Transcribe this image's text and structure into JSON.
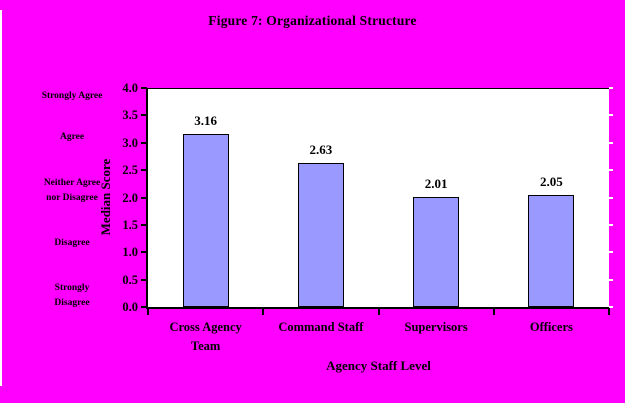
{
  "title": "Figure 7: Organizational Structure",
  "colors": {
    "background": "#FF00FF",
    "plot_background": "#FFFFFF",
    "bar_fill": "#9999FF",
    "bar_border": "#000000",
    "axis": "#000000",
    "text": "#000000"
  },
  "likert_scale_labels": [
    {
      "lines": [
        "Strongly Agree"
      ],
      "value": 4
    },
    {
      "lines": [
        "Agree"
      ],
      "value": 3
    },
    {
      "lines": [
        "Neither Agree",
        "nor Disagree"
      ],
      "value": 2
    },
    {
      "lines": [
        "Disagree"
      ],
      "value": 1
    },
    {
      "lines": [
        "Strongly",
        "Disagree"
      ],
      "value": 0
    }
  ],
  "chart_data": {
    "type": "bar",
    "title": "Figure 7: Organizational Structure",
    "categories": [
      "Cross Agency Team",
      "Command Staff",
      "Supervisors",
      "Officers"
    ],
    "category_lines": [
      [
        "Cross Agency",
        "Team"
      ],
      [
        "Command Staff"
      ],
      [
        "Supervisors"
      ],
      [
        "Officers"
      ]
    ],
    "values": [
      3.16,
      2.63,
      2.01,
      2.05
    ],
    "value_labels": [
      "3.16",
      "2.63",
      "2.01",
      "2.05"
    ],
    "xlabel": "Agency Staff Level",
    "ylabel": "Median Score",
    "ylim": [
      0,
      4
    ],
    "ytick_labels": [
      "4.0",
      "3.5",
      "3.0",
      "2.5",
      "2.0",
      "1.5",
      "1.0",
      "0.5",
      "0.0"
    ],
    "grid": false,
    "legend_position": "none"
  }
}
